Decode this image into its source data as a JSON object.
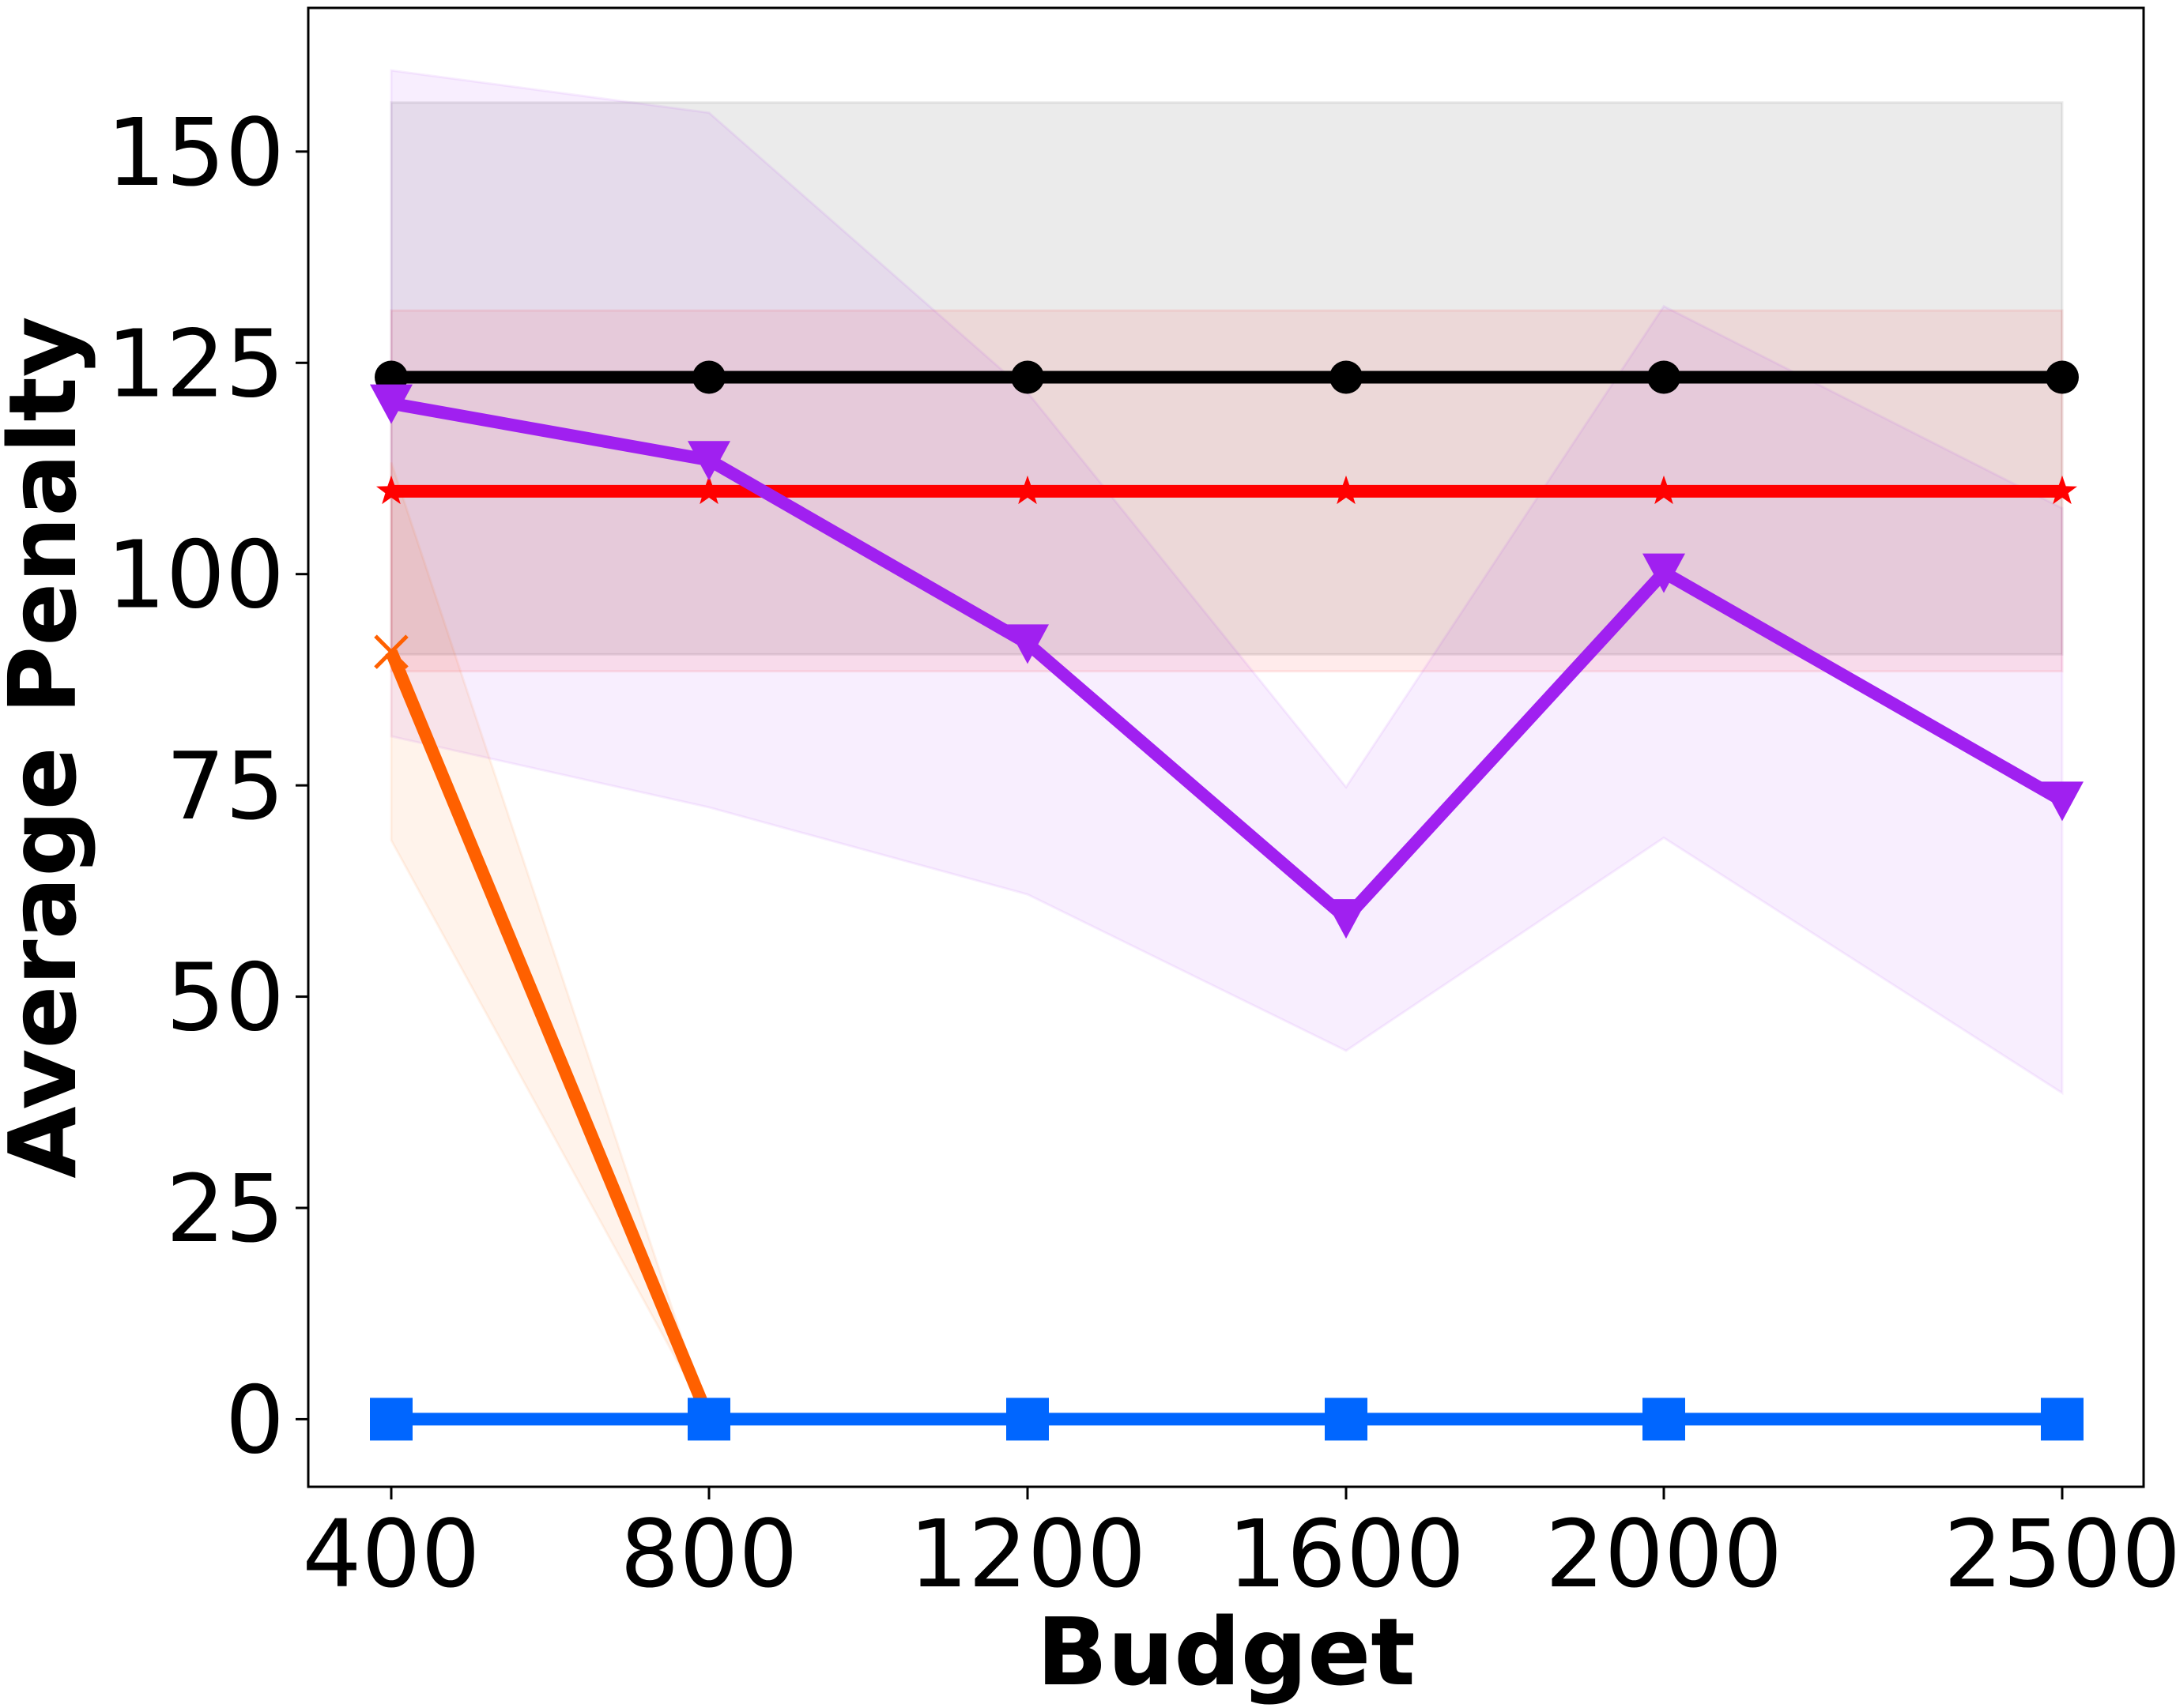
{
  "chart_data": {
    "type": "line",
    "title": "",
    "xlabel": "Budget",
    "ylabel": "Average Penalty",
    "x_ticks": [
      400,
      800,
      1200,
      1600,
      2000,
      2500
    ],
    "y_ticks": [
      0,
      25,
      50,
      75,
      100,
      125,
      150
    ],
    "ylim": [
      -8,
      167
    ],
    "grid": false,
    "legend": "none",
    "series": [
      {
        "color": "#000000",
        "marker": "circle",
        "x": [
          400,
          800,
          1200,
          1600,
          2000,
          2500
        ],
        "y": [
          123.3,
          123.3,
          123.3,
          123.3,
          123.3,
          123.3
        ],
        "band_lower": [
          90.5,
          90.5,
          90.5,
          90.5,
          90.5,
          90.5
        ],
        "band_upper": [
          155.8,
          155.8,
          155.8,
          155.8,
          155.8,
          155.8
        ]
      },
      {
        "color": "#ff0000",
        "marker": "star",
        "x": [
          400,
          800,
          1200,
          1600,
          2000,
          2500
        ],
        "y": [
          109.8,
          109.8,
          109.8,
          109.8,
          109.8,
          109.8
        ],
        "band_lower": [
          88.5,
          88.5,
          88.5,
          88.5,
          88.5,
          88.5
        ],
        "band_upper": [
          131.2,
          131.2,
          131.2,
          131.2,
          131.2,
          131.2
        ]
      },
      {
        "color": "#a020f0",
        "marker": "triangle-down",
        "x": [
          400,
          800,
          1200,
          1600,
          2000,
          2500
        ],
        "y": [
          120.2,
          113.5,
          91.8,
          59.3,
          100.2,
          73.2
        ],
        "band_lower": [
          80.8,
          72.4,
          62.1,
          43.6,
          68.8,
          38.6
        ],
        "band_upper": [
          159.6,
          154.6,
          121.5,
          74.8,
          131.7,
          107.8
        ]
      },
      {
        "color": "#ff6000",
        "marker": "x",
        "x": [
          400,
          800
        ],
        "y": [
          90.8,
          0
        ],
        "band_lower": [
          68.5,
          0
        ],
        "band_upper": [
          113.2,
          0
        ]
      },
      {
        "color": "#0066ff",
        "marker": "square",
        "x": [
          400,
          800,
          1200,
          1600,
          2000,
          2500
        ],
        "y": [
          0,
          0,
          0,
          0,
          0,
          0
        ]
      }
    ]
  }
}
